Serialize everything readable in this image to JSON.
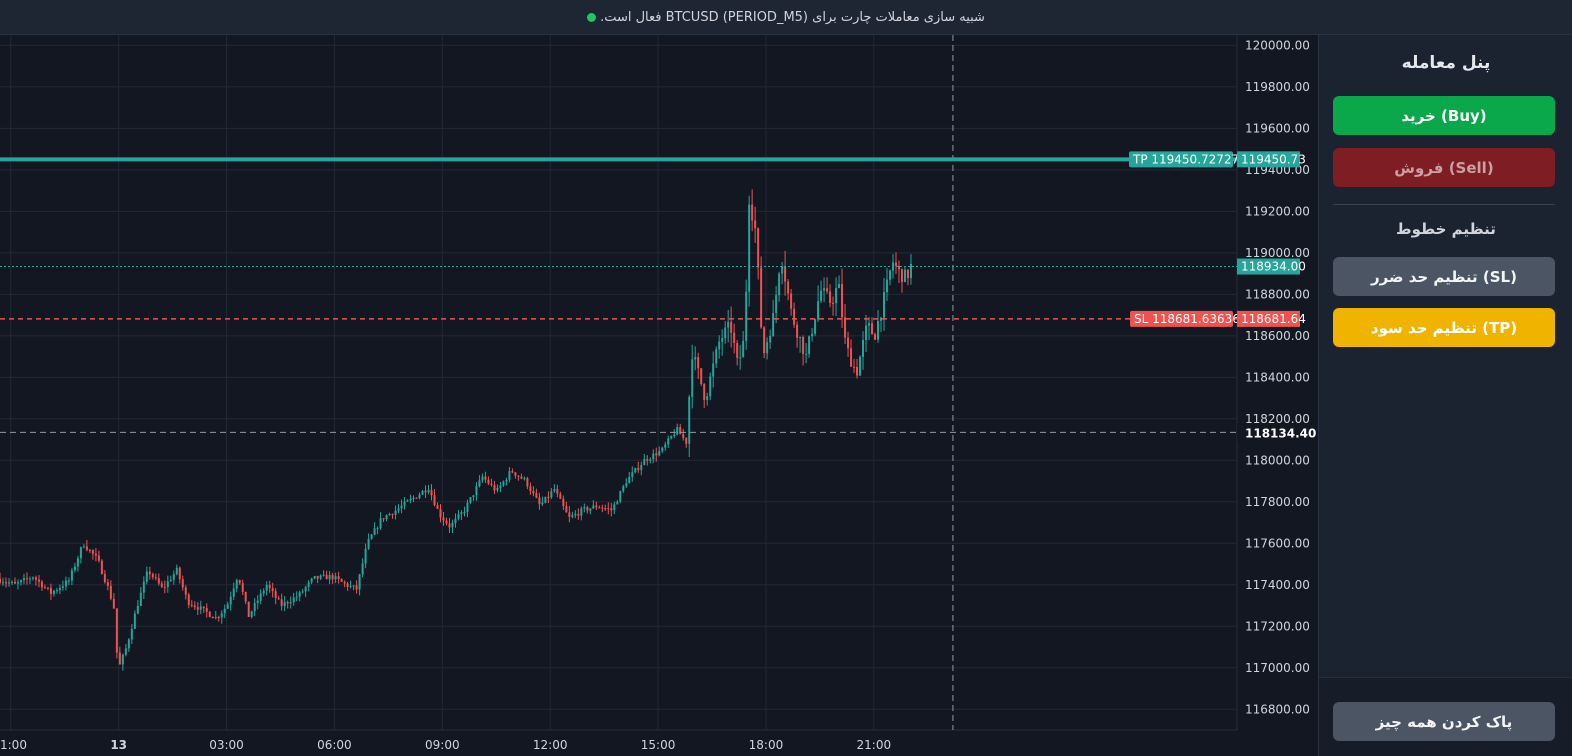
{
  "status": {
    "message": "شبیه سازی معاملات  چارت برای BTCUSD (PERIOD_M5) فعال است.",
    "indicator_color": "#22c55e"
  },
  "panel": {
    "title": "پنل معامله",
    "buy_label": "خرید (Buy)",
    "sell_label": "فروش (Sell)",
    "lines_title": "تنظیم خطوط",
    "set_sl_label": "تنظیم حد ضرر (SL)",
    "set_tp_label": "تنظیم حد سود (TP)",
    "clear_label": "پاک کردن همه چیز",
    "colors": {
      "buy": "#0aa84a",
      "sell": "#7f1d24",
      "sl": "#4b5563",
      "tp": "#f0b400",
      "clear": "#4b5563"
    }
  },
  "chart_data": {
    "type": "candlestick",
    "symbol": "BTCUSD",
    "timeframe": "PERIOD_M5",
    "y_range": [
      116700,
      120050
    ],
    "y_ticks": [
      120000,
      119800,
      119600,
      119400,
      119200,
      119000,
      118800,
      118600,
      118400,
      118200,
      118000,
      117800,
      117600,
      117400,
      117200,
      117000,
      116800
    ],
    "y_tick_labels": [
      "120000.00",
      "119800.00",
      "119600.00",
      "119400.00",
      "119200.00",
      "119000.00",
      "118800.00",
      "118600.00",
      "118400.00",
      "118200.00",
      "118000.00",
      "117800.00",
      "117600.00",
      "117400.00",
      "117200.00",
      "117000.00",
      "116800.00"
    ],
    "x_tick_labels": [
      "1:00",
      "13",
      "03:00",
      "06:00",
      "09:00",
      "12:00",
      "15:00",
      "18:00",
      "21:00"
    ],
    "x_tick_hours": [
      -3,
      0,
      3,
      6,
      9,
      12,
      15,
      18,
      21
    ],
    "x_range_hours": [
      -3.3,
      31.1
    ],
    "crosshair": {
      "price": 118134.4,
      "label": "118134.40",
      "hour": 23.2
    },
    "tp_line": {
      "price": 119450.72727,
      "label": "TP 119450.72727",
      "axis_label": "119450.73",
      "color": "#26a69a"
    },
    "sl_line": {
      "price": 118681.63636,
      "label": "SL 118681.63636",
      "axis_label": "118681.64",
      "color": "#ef5350"
    },
    "current_price": {
      "price": 118934.0,
      "axis_label": "118934.00",
      "color": "#26a69a"
    },
    "candle_colors": {
      "up": "#26a69a",
      "down": "#ef5350"
    },
    "path_points": [
      [
        -3.3,
        117430
      ],
      [
        -2.8,
        117400
      ],
      [
        -2.3,
        117440
      ],
      [
        -1.8,
        117360
      ],
      [
        -1.3,
        117420
      ],
      [
        -0.9,
        117600
      ],
      [
        -0.5,
        117520
      ],
      [
        -0.2,
        117380
      ],
      [
        0.0,
        117260
      ],
      [
        0.05,
        116980
      ],
      [
        0.3,
        117100
      ],
      [
        0.6,
        117300
      ],
      [
        0.9,
        117470
      ],
      [
        1.3,
        117380
      ],
      [
        1.7,
        117470
      ],
      [
        2.0,
        117320
      ],
      [
        2.4,
        117280
      ],
      [
        2.8,
        117240
      ],
      [
        3.1,
        117300
      ],
      [
        3.4,
        117450
      ],
      [
        3.7,
        117250
      ],
      [
        4.2,
        117400
      ],
      [
        4.6,
        117300
      ],
      [
        5.1,
        117350
      ],
      [
        5.5,
        117430
      ],
      [
        6.0,
        117440
      ],
      [
        6.4,
        117400
      ],
      [
        6.7,
        117380
      ],
      [
        7.0,
        117600
      ],
      [
        7.4,
        117720
      ],
      [
        7.8,
        117760
      ],
      [
        8.3,
        117820
      ],
      [
        8.7,
        117870
      ],
      [
        9.0,
        117740
      ],
      [
        9.3,
        117680
      ],
      [
        9.7,
        117760
      ],
      [
        10.2,
        117920
      ],
      [
        10.6,
        117850
      ],
      [
        11.0,
        117950
      ],
      [
        11.4,
        117900
      ],
      [
        11.8,
        117780
      ],
      [
        12.2,
        117860
      ],
      [
        12.6,
        117720
      ],
      [
        13.0,
        117760
      ],
      [
        13.4,
        117780
      ],
      [
        13.8,
        117760
      ],
      [
        14.2,
        117900
      ],
      [
        14.7,
        118000
      ],
      [
        15.2,
        118050
      ],
      [
        15.6,
        118150
      ],
      [
        15.9,
        118080
      ],
      [
        16.0,
        118540
      ],
      [
        16.4,
        118300
      ],
      [
        16.8,
        118580
      ],
      [
        17.1,
        118650
      ],
      [
        17.3,
        118450
      ],
      [
        17.5,
        118600
      ],
      [
        17.6,
        119280
      ],
      [
        17.8,
        119100
      ],
      [
        18.0,
        118500
      ],
      [
        18.3,
        118700
      ],
      [
        18.5,
        119000
      ],
      [
        18.8,
        118700
      ],
      [
        19.2,
        118500
      ],
      [
        19.6,
        118820
      ],
      [
        19.9,
        118760
      ],
      [
        20.1,
        118850
      ],
      [
        20.3,
        118550
      ],
      [
        20.6,
        118420
      ],
      [
        20.9,
        118650
      ],
      [
        21.1,
        118600
      ],
      [
        21.4,
        118800
      ],
      [
        21.6,
        118960
      ],
      [
        21.8,
        118900
      ],
      [
        22.0,
        118880
      ],
      [
        22.1,
        118934
      ]
    ]
  }
}
